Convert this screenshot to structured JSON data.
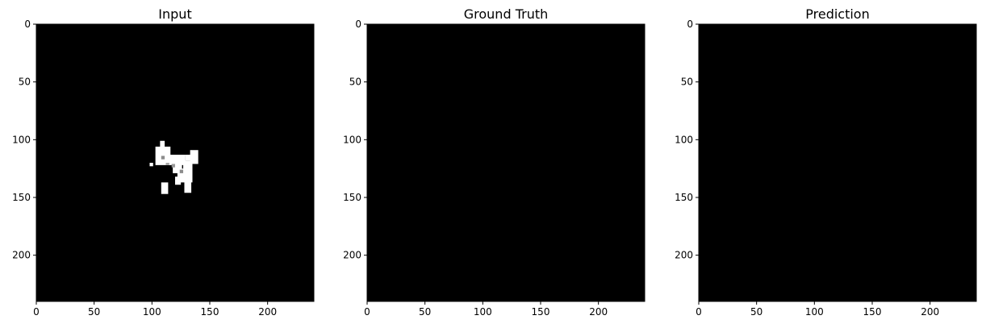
{
  "chart_data": [
    {
      "type": "heatmap",
      "title": "Input",
      "xlim": [
        0,
        240
      ],
      "ylim": [
        240,
        0
      ],
      "xticks": [
        0,
        50,
        100,
        150,
        200
      ],
      "yticks": [
        0,
        50,
        100,
        150,
        200
      ],
      "xtick_labels": [
        "0",
        "50",
        "100",
        "150",
        "200"
      ],
      "ytick_labels": [
        "0",
        "50",
        "100",
        "150",
        "200"
      ],
      "colormap": "gray",
      "background": "#000000",
      "foreground_regions": [
        {
          "x": 107,
          "y": 101,
          "w": 4,
          "h": 6,
          "value": 1.0
        },
        {
          "x": 103,
          "y": 106,
          "w": 13,
          "h": 16,
          "value": 1.0
        },
        {
          "x": 114,
          "y": 113,
          "w": 15,
          "h": 9,
          "value": 1.0
        },
        {
          "x": 118,
          "y": 119,
          "w": 8,
          "h": 10,
          "value": 1.0
        },
        {
          "x": 122,
          "y": 125,
          "w": 13,
          "h": 12,
          "value": 1.0
        },
        {
          "x": 127,
          "y": 118,
          "w": 8,
          "h": 12,
          "value": 1.0
        },
        {
          "x": 128,
          "y": 134,
          "w": 6,
          "h": 12,
          "value": 1.0
        },
        {
          "x": 133,
          "y": 109,
          "w": 7,
          "h": 12,
          "value": 1.0
        },
        {
          "x": 129,
          "y": 113,
          "w": 6,
          "h": 5,
          "value": 1.0
        },
        {
          "x": 120,
          "y": 132,
          "w": 5,
          "h": 7,
          "value": 1.0
        },
        {
          "x": 108,
          "y": 137,
          "w": 6,
          "h": 10,
          "value": 1.0
        },
        {
          "x": 98,
          "y": 120,
          "w": 3,
          "h": 3,
          "value": 1.0
        },
        {
          "x": 108,
          "y": 114,
          "w": 3,
          "h": 3,
          "value": 0.55
        },
        {
          "x": 117,
          "y": 121,
          "w": 3,
          "h": 3,
          "value": 0.6
        },
        {
          "x": 124,
          "y": 126,
          "w": 3,
          "h": 3,
          "value": 0.55
        },
        {
          "x": 112,
          "y": 120,
          "w": 3,
          "h": 2,
          "value": 0.65
        }
      ]
    },
    {
      "type": "heatmap",
      "title": "Ground Truth",
      "xlim": [
        0,
        240
      ],
      "ylim": [
        240,
        0
      ],
      "xticks": [
        0,
        50,
        100,
        150,
        200
      ],
      "yticks": [
        0,
        50,
        100,
        150,
        200
      ],
      "xtick_labels": [
        "0",
        "50",
        "100",
        "150",
        "200"
      ],
      "ytick_labels": [
        "0",
        "50",
        "100",
        "150",
        "200"
      ],
      "colormap": "gray",
      "background": "#000000",
      "foreground_regions": []
    },
    {
      "type": "heatmap",
      "title": "Prediction",
      "xlim": [
        0,
        240
      ],
      "ylim": [
        240,
        0
      ],
      "xticks": [
        0,
        50,
        100,
        150,
        200
      ],
      "yticks": [
        0,
        50,
        100,
        150,
        200
      ],
      "xtick_labels": [
        "0",
        "50",
        "100",
        "150",
        "200"
      ],
      "ytick_labels": [
        "0",
        "50",
        "100",
        "150",
        "200"
      ],
      "colormap": "gray",
      "background": "#000000",
      "foreground_regions": []
    }
  ]
}
